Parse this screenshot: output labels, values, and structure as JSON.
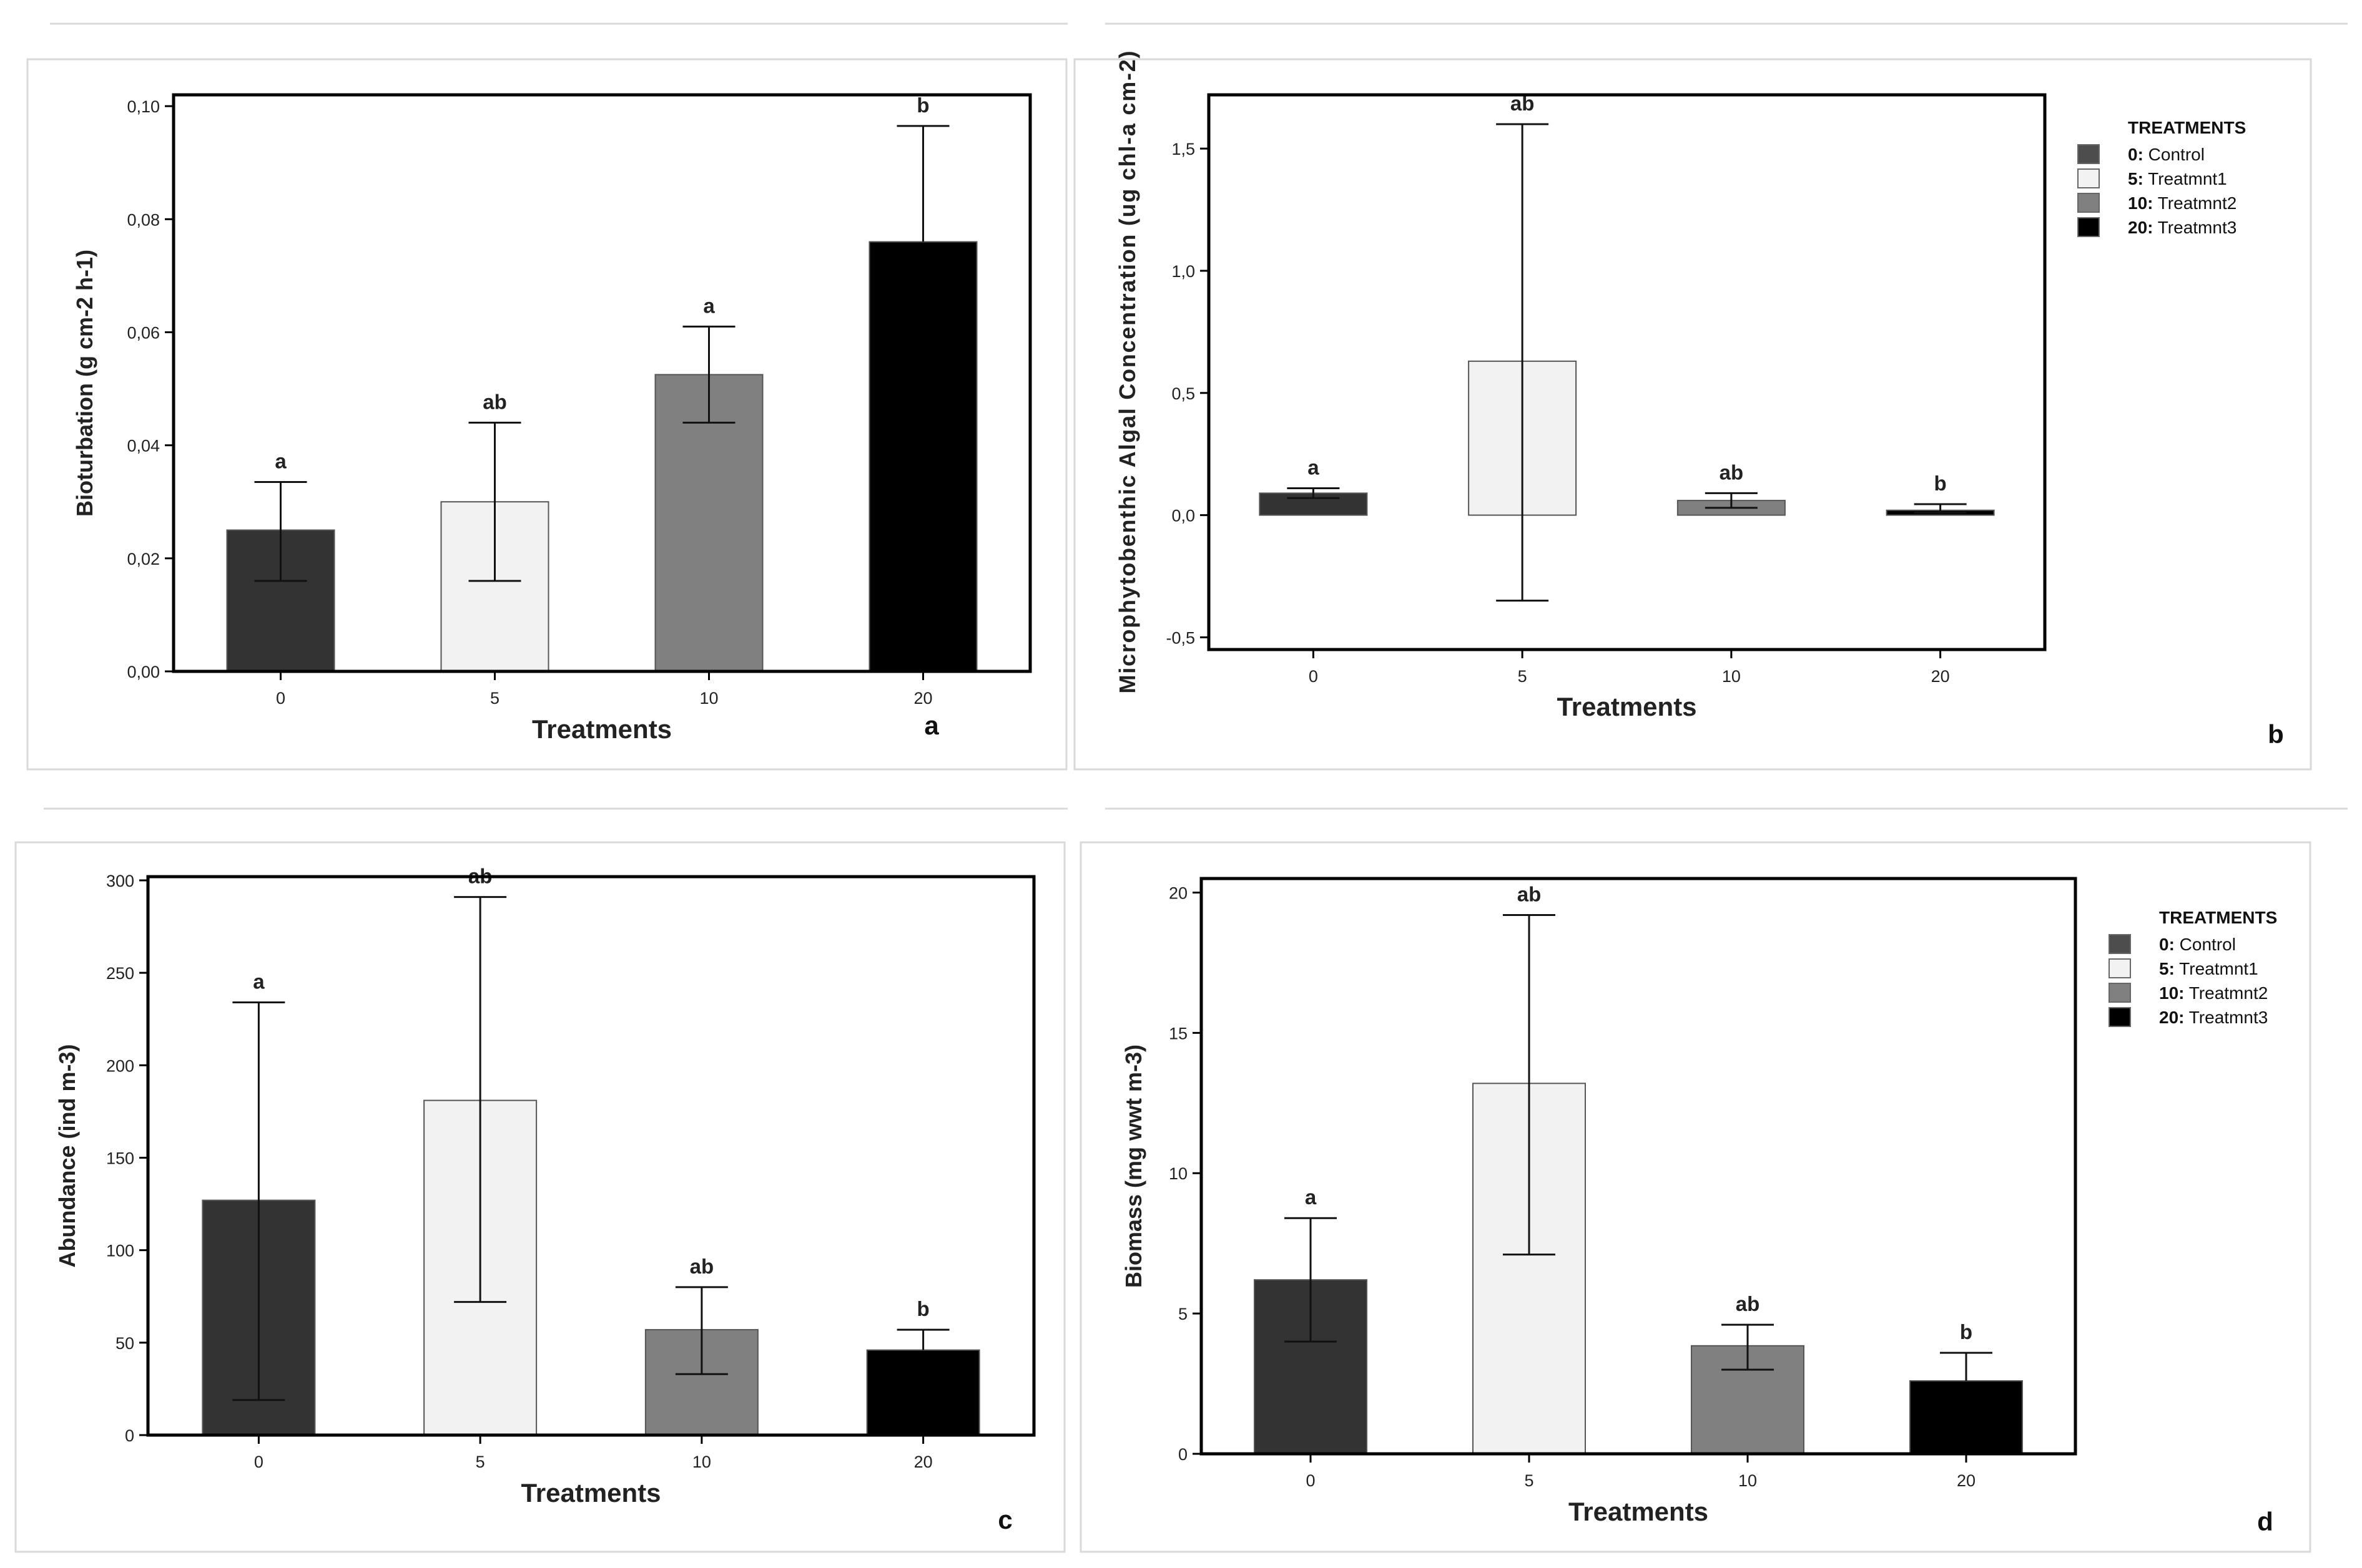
{
  "chart_data": [
    {
      "panel": "a",
      "type": "bar",
      "ylabel": "Bioturbation (g cm-2 h-1)",
      "xlabel": "Treatments",
      "categories": [
        "0",
        "5",
        "10",
        "20"
      ],
      "values": [
        0.025,
        0.03,
        0.0525,
        0.076
      ],
      "error_low": [
        0.016,
        0.016,
        0.044,
        0.076
      ],
      "error_high": [
        0.0335,
        0.044,
        0.061,
        0.0965
      ],
      "significance": [
        "a",
        "ab",
        "a",
        "b"
      ],
      "ylim": [
        0,
        0.102
      ],
      "yticks": [
        0,
        0.02,
        0.04,
        0.06,
        0.08,
        0.1
      ],
      "ytick_labels": [
        "0,00",
        "0,02",
        "0,04",
        "0,06",
        "0,08",
        "0,10"
      ],
      "legend": false
    },
    {
      "panel": "b",
      "type": "bar",
      "ylabel": "Microphytobenthic Algal Concentration (ug chl-a cm-2)",
      "xlabel": "Treatments",
      "categories": [
        "0",
        "5",
        "10",
        "20"
      ],
      "values": [
        0.09,
        0.63,
        0.06,
        0.02
      ],
      "error_low": [
        0.07,
        -0.35,
        0.03,
        0.01
      ],
      "error_high": [
        0.11,
        1.6,
        0.09,
        0.045
      ],
      "significance": [
        "a",
        "ab",
        "ab",
        "b"
      ],
      "ylim": [
        -0.55,
        1.72
      ],
      "yticks": [
        -0.5,
        0,
        0.5,
        1.0,
        1.5
      ],
      "ytick_labels": [
        "-0,5",
        "0,0",
        "0,5",
        "1,0",
        "1,5"
      ],
      "legend": true
    },
    {
      "panel": "c",
      "type": "bar",
      "ylabel": "Abundance (ind m-3)",
      "xlabel": "Treatments",
      "categories": [
        "0",
        "5",
        "10",
        "20"
      ],
      "values": [
        127,
        181,
        57,
        46
      ],
      "error_low": [
        19,
        72,
        33,
        46
      ],
      "error_high": [
        234,
        291,
        80,
        57
      ],
      "significance": [
        "a",
        "ab",
        "ab",
        "b"
      ],
      "ylim": [
        0,
        302
      ],
      "yticks": [
        0,
        50,
        100,
        150,
        200,
        250,
        300
      ],
      "ytick_labels": [
        "0",
        "50",
        "100",
        "150",
        "200",
        "250",
        "300"
      ],
      "legend": false
    },
    {
      "panel": "d",
      "type": "bar",
      "ylabel": "Biomass (mg wwt m-3)",
      "xlabel": "Treatments",
      "categories": [
        "0",
        "5",
        "10",
        "20"
      ],
      "values": [
        6.2,
        13.2,
        3.85,
        2.6
      ],
      "error_low": [
        4.0,
        7.1,
        3.0,
        2.6
      ],
      "error_high": [
        8.4,
        19.2,
        4.6,
        3.6
      ],
      "significance": [
        "a",
        "ab",
        "ab",
        "b"
      ],
      "ylim": [
        0,
        20.5
      ],
      "yticks": [
        0,
        5,
        10,
        15,
        20
      ],
      "ytick_labels": [
        "0",
        "5",
        "10",
        "15",
        "20"
      ],
      "legend": true
    }
  ],
  "bar_colors": [
    "#333333",
    "#f2f2f2",
    "#808080",
    "#000000"
  ],
  "bar_stroke": "#555555",
  "legend": {
    "title": "TREATMENTS",
    "items": [
      {
        "code": "0:",
        "label": "Control",
        "color": "#4d4d4d"
      },
      {
        "code": "5:",
        "label": "Treatmnt1",
        "color": "#f2f2f2"
      },
      {
        "code": "10:",
        "label": "Treatmnt2",
        "color": "#808080"
      },
      {
        "code": "20:",
        "label": "Treatmnt3",
        "color": "#000000"
      }
    ]
  }
}
